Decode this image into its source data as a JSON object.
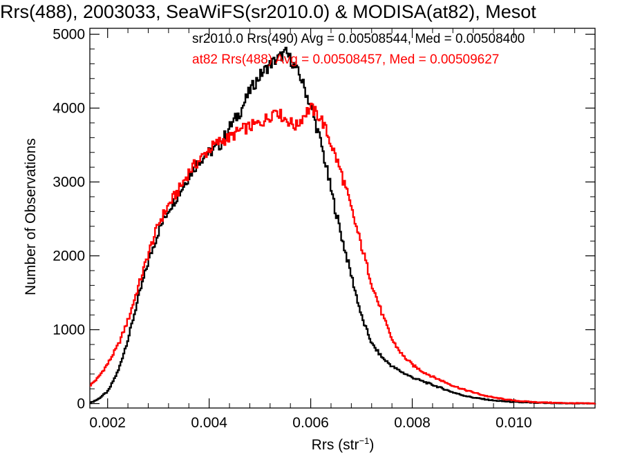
{
  "chart_data": {
    "type": "line",
    "title": "Rrs(488), 2003033, SeaWiFS(sr2010.0) & MODISA(at82), Mesot",
    "xlabel_main": "Rrs (str",
    "xlabel_sup": "−1",
    "xlabel_close": ")",
    "ylabel": "Number of Observations",
    "xlim": [
      0.00165,
      0.0116
    ],
    "ylim": [
      -60,
      5080
    ],
    "x_ticks": [
      0.002,
      0.004,
      0.006,
      0.008,
      0.01
    ],
    "x_tick_labels": [
      "0.002",
      "0.004",
      "0.006",
      "0.008",
      "0.010"
    ],
    "y_ticks": [
      0,
      1000,
      2000,
      3000,
      4000,
      5000
    ],
    "y_tick_labels": [
      "0",
      "1000",
      "2000",
      "3000",
      "4000",
      "5000"
    ],
    "grid": false,
    "legend_position": "top",
    "series": [
      {
        "name": "sr2010.0 Rrs(490) Avg = 0.00508544, Med = 0.00508400",
        "color": "#000000",
        "x": [
          0.00165,
          0.0018,
          0.002,
          0.0022,
          0.0024,
          0.0026,
          0.0028,
          0.003,
          0.0032,
          0.0034,
          0.0036,
          0.0038,
          0.004,
          0.0042,
          0.0044,
          0.0046,
          0.0048,
          0.005,
          0.0052,
          0.0054,
          0.0055,
          0.0056,
          0.0058,
          0.006,
          0.0062,
          0.0064,
          0.0066,
          0.0068,
          0.007,
          0.0072,
          0.0074,
          0.0076,
          0.0078,
          0.008,
          0.0082,
          0.0084,
          0.0086,
          0.0088,
          0.009,
          0.0092,
          0.0094,
          0.0096,
          0.0098,
          0.01,
          0.0104,
          0.0108,
          0.0112,
          0.0116
        ],
        "y": [
          10,
          60,
          170,
          450,
          900,
          1450,
          1950,
          2350,
          2650,
          2850,
          3100,
          3300,
          3400,
          3500,
          3750,
          3950,
          4250,
          4450,
          4600,
          4700,
          4750,
          4650,
          4400,
          4000,
          3500,
          2850,
          2250,
          1700,
          1150,
          800,
          620,
          500,
          420,
          350,
          300,
          250,
          200,
          150,
          110,
          80,
          60,
          40,
          30,
          20,
          10,
          5,
          2,
          0
        ]
      },
      {
        "name": "at82 Rrs(488) Avg = 0.00508457, Med = 0.00509627",
        "color": "#ff0000",
        "x": [
          0.00165,
          0.0018,
          0.002,
          0.0022,
          0.0024,
          0.0026,
          0.0028,
          0.003,
          0.0032,
          0.0034,
          0.0036,
          0.0038,
          0.004,
          0.0042,
          0.0044,
          0.0046,
          0.0048,
          0.005,
          0.0052,
          0.0053,
          0.0054,
          0.0055,
          0.0056,
          0.0057,
          0.0058,
          0.0059,
          0.006,
          0.0062,
          0.0064,
          0.0066,
          0.0068,
          0.007,
          0.0072,
          0.0074,
          0.0076,
          0.0078,
          0.008,
          0.0082,
          0.0084,
          0.0086,
          0.0088,
          0.009,
          0.0092,
          0.0094,
          0.0096,
          0.0098,
          0.01,
          0.0104,
          0.0108,
          0.0112,
          0.0116
        ],
        "y": [
          250,
          350,
          550,
          800,
          1150,
          1600,
          2050,
          2450,
          2700,
          2900,
          3150,
          3300,
          3450,
          3550,
          3600,
          3700,
          3750,
          3800,
          3900,
          4000,
          3900,
          3850,
          3800,
          3750,
          3850,
          3950,
          4000,
          3850,
          3500,
          3100,
          2600,
          2100,
          1600,
          1200,
          850,
          650,
          520,
          430,
          360,
          300,
          240,
          190,
          150,
          110,
          80,
          60,
          40,
          20,
          10,
          5,
          0
        ]
      }
    ]
  }
}
